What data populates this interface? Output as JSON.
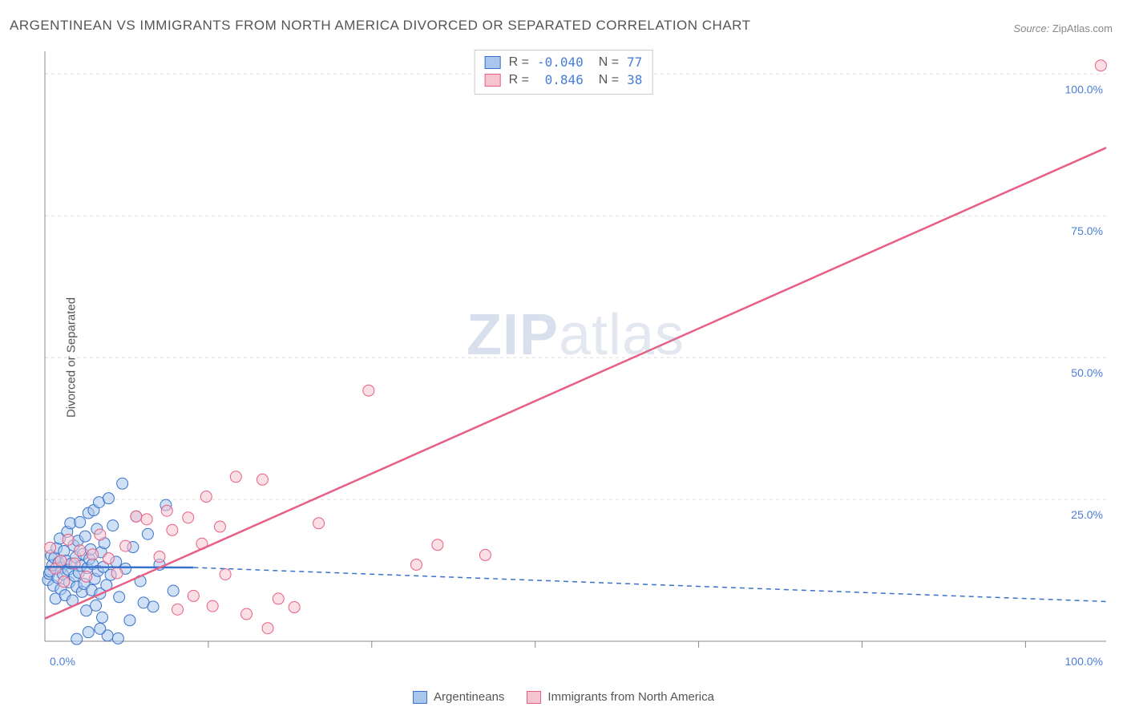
{
  "title": "ARGENTINEAN VS IMMIGRANTS FROM NORTH AMERICA DIVORCED OR SEPARATED CORRELATION CHART",
  "source": {
    "label": "Source:",
    "value": "ZipAtlas.com"
  },
  "ylabel": "Divorced or Separated",
  "watermark": {
    "bold": "ZIP",
    "rest": "atlas"
  },
  "chart": {
    "type": "scatter",
    "xlim": [
      0,
      100
    ],
    "ylim": [
      0,
      104
    ],
    "x_ticks": [
      0,
      100
    ],
    "x_tick_labels": [
      "0.0%",
      "100.0%"
    ],
    "y_ticks": [
      25,
      50,
      75,
      100
    ],
    "y_tick_labels": [
      "25.0%",
      "50.0%",
      "75.0%",
      "100.0%"
    ],
    "x_minor_grid": [
      15.4,
      30.8,
      46.2,
      61.6,
      77.0,
      92.4
    ],
    "background_color": "#ffffff",
    "grid_color": "#dddddd",
    "axis_color": "#888888",
    "tick_label_color": "#4a7dd6",
    "tick_label_fontsize": 14,
    "point_radius": 7,
    "point_opacity": 0.55,
    "line_width": 2.5,
    "series": [
      {
        "name": "Argentineans",
        "color_fill": "#a9c6ec",
        "color_stroke": "#3a72c9",
        "R": "-0.040",
        "N": "77",
        "trend": {
          "x1": 0,
          "y1": 13.1,
          "x2": 14,
          "y2": 13.0,
          "solid_until": 14,
          "dash_to_x": 100,
          "dash_to_y": 7.0,
          "dash": "6,5"
        },
        "points": [
          [
            0.3,
            10.8
          ],
          [
            0.4,
            11.9
          ],
          [
            0.5,
            12.3
          ],
          [
            0.6,
            15.1
          ],
          [
            0.7,
            13.4
          ],
          [
            0.8,
            9.8
          ],
          [
            0.9,
            14.7
          ],
          [
            1.0,
            7.5
          ],
          [
            1.1,
            16.4
          ],
          [
            1.2,
            11.2
          ],
          [
            1.3,
            13.9
          ],
          [
            1.4,
            18.1
          ],
          [
            1.5,
            9.2
          ],
          [
            1.6,
            13.0
          ],
          [
            1.7,
            11.8
          ],
          [
            1.8,
            15.9
          ],
          [
            1.9,
            8.1
          ],
          [
            2.0,
            14.2
          ],
          [
            2.1,
            19.3
          ],
          [
            2.2,
            12.6
          ],
          [
            2.3,
            10.4
          ],
          [
            2.4,
            20.8
          ],
          [
            2.5,
            13.7
          ],
          [
            2.6,
            7.2
          ],
          [
            2.7,
            16.9
          ],
          [
            2.8,
            11.5
          ],
          [
            2.9,
            14.8
          ],
          [
            3.0,
            9.6
          ],
          [
            3.1,
            17.7
          ],
          [
            3.2,
            12.1
          ],
          [
            3.3,
            21.0
          ],
          [
            3.4,
            13.3
          ],
          [
            3.5,
            8.7
          ],
          [
            3.6,
            15.4
          ],
          [
            3.7,
            10.1
          ],
          [
            3.8,
            18.5
          ],
          [
            3.9,
            5.4
          ],
          [
            4.0,
            12.9
          ],
          [
            4.1,
            22.6
          ],
          [
            4.2,
            14.5
          ],
          [
            4.3,
            16.2
          ],
          [
            4.4,
            9.0
          ],
          [
            4.5,
            13.6
          ],
          [
            4.6,
            23.1
          ],
          [
            4.7,
            11.0
          ],
          [
            4.8,
            6.3
          ],
          [
            4.9,
            19.8
          ],
          [
            5.0,
            12.4
          ],
          [
            5.1,
            24.5
          ],
          [
            5.2,
            8.4
          ],
          [
            5.3,
            15.7
          ],
          [
            5.4,
            4.2
          ],
          [
            5.5,
            13.1
          ],
          [
            5.6,
            17.3
          ],
          [
            5.8,
            9.9
          ],
          [
            6.0,
            25.2
          ],
          [
            6.2,
            11.7
          ],
          [
            6.4,
            20.4
          ],
          [
            6.7,
            14.0
          ],
          [
            7.0,
            7.8
          ],
          [
            7.3,
            27.8
          ],
          [
            7.6,
            12.8
          ],
          [
            8.0,
            3.7
          ],
          [
            8.3,
            16.6
          ],
          [
            8.6,
            22.0
          ],
          [
            9.0,
            10.6
          ],
          [
            9.3,
            6.8
          ],
          [
            9.7,
            18.9
          ],
          [
            10.2,
            6.1
          ],
          [
            10.8,
            13.5
          ],
          [
            11.4,
            24.0
          ],
          [
            12.1,
            8.9
          ],
          [
            5.9,
            1.0
          ],
          [
            6.9,
            0.5
          ],
          [
            5.2,
            2.2
          ],
          [
            3.0,
            0.4
          ],
          [
            4.1,
            1.6
          ]
        ]
      },
      {
        "name": "Immigrants from North America",
        "color_fill": "#f5c4cf",
        "color_stroke": "#e85f85",
        "R": "0.846",
        "N": "38",
        "trend": {
          "x1": 0,
          "y1": 4.0,
          "x2": 100,
          "y2": 87.0,
          "solid_until": 100,
          "dash_to_x": 100,
          "dash_to_y": 87.0,
          "dash": ""
        },
        "points": [
          [
            0.5,
            16.5
          ],
          [
            1.0,
            12.8
          ],
          [
            1.5,
            14.2
          ],
          [
            1.8,
            10.5
          ],
          [
            2.2,
            17.9
          ],
          [
            2.8,
            13.7
          ],
          [
            3.3,
            16.0
          ],
          [
            3.9,
            11.4
          ],
          [
            4.5,
            15.3
          ],
          [
            5.2,
            18.8
          ],
          [
            6.0,
            14.6
          ],
          [
            6.8,
            12.0
          ],
          [
            7.6,
            16.8
          ],
          [
            8.6,
            22.0
          ],
          [
            9.6,
            21.5
          ],
          [
            10.8,
            14.9
          ],
          [
            11.5,
            23.0
          ],
          [
            12.0,
            19.6
          ],
          [
            12.5,
            5.6
          ],
          [
            13.5,
            21.8
          ],
          [
            14.0,
            8.0
          ],
          [
            14.8,
            17.2
          ],
          [
            15.2,
            25.5
          ],
          [
            15.8,
            6.2
          ],
          [
            16.5,
            20.2
          ],
          [
            17.0,
            11.8
          ],
          [
            18.0,
            29.0
          ],
          [
            19.0,
            4.8
          ],
          [
            21.0,
            2.3
          ],
          [
            22.0,
            7.5
          ],
          [
            20.5,
            28.5
          ],
          [
            23.5,
            6.0
          ],
          [
            25.8,
            20.8
          ],
          [
            30.5,
            44.2
          ],
          [
            35.0,
            13.5
          ],
          [
            37.0,
            17.0
          ],
          [
            41.5,
            15.2
          ],
          [
            99.5,
            101.5
          ]
        ]
      }
    ],
    "bottom_legend": [
      {
        "label": "Argentineans",
        "fill": "#a9c6ec",
        "stroke": "#3a72c9"
      },
      {
        "label": "Immigrants from North America",
        "fill": "#f5c4cf",
        "stroke": "#e85f85"
      }
    ]
  }
}
